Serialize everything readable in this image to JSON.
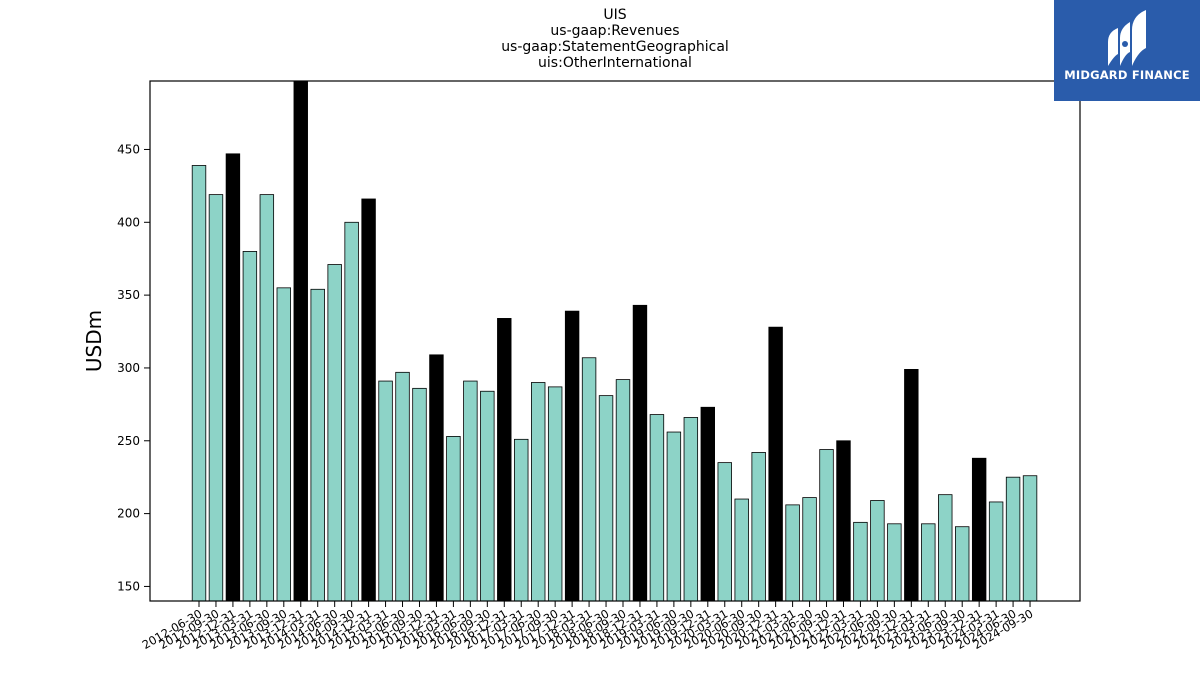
{
  "logo": {
    "text": "MIDGARD FINANCE",
    "icon": "midgard-logo-icon",
    "bg_color": "#2a5cab"
  },
  "chart_data": {
    "type": "bar",
    "title": [
      "UIS",
      "us-gaap:Revenues",
      "us-gaap:StatementGeographical",
      "uis:OtherInternational"
    ],
    "ylabel": "USDm",
    "xlabel": "",
    "ylim": [
      140,
      497
    ],
    "yticks": [
      150,
      200,
      250,
      300,
      350,
      400,
      450
    ],
    "colors": {
      "quarter": "#8dd3c7",
      "q4": "#000000"
    },
    "categories": [
      "2012-06-30",
      "2012-09-30",
      "2012-12-31",
      "2013-03-31",
      "2013-06-30",
      "2013-09-30",
      "2013-12-31",
      "2014-03-31",
      "2014-06-30",
      "2014-09-30",
      "2014-12-31",
      "2015-03-31",
      "2015-06-30",
      "2015-09-30",
      "2015-12-31",
      "2016-03-31",
      "2016-06-30",
      "2016-09-30",
      "2016-12-31",
      "2017-03-31",
      "2017-06-30",
      "2017-09-30",
      "2017-12-31",
      "2018-03-31",
      "2018-06-30",
      "2018-09-30",
      "2018-12-31",
      "2019-03-31",
      "2019-06-30",
      "2019-09-30",
      "2019-12-31",
      "2020-03-31",
      "2020-06-30",
      "2020-09-30",
      "2020-12-31",
      "2021-03-31",
      "2021-06-30",
      "2021-09-30",
      "2021-12-31",
      "2022-03-31",
      "2022-06-30",
      "2022-09-30",
      "2022-12-31",
      "2023-03-31",
      "2023-06-30",
      "2023-09-30",
      "2023-12-31",
      "2024-03-31",
      "2024-06-30",
      "2024-09-30"
    ],
    "values": [
      439,
      419,
      447,
      380,
      419,
      355,
      497,
      354,
      371,
      400,
      416,
      291,
      297,
      286,
      309,
      253,
      291,
      284,
      334,
      251,
      290,
      287,
      339,
      307,
      281,
      292,
      343,
      268,
      256,
      266,
      273,
      235,
      210,
      242,
      328,
      206,
      211,
      244,
      250,
      194,
      209,
      193,
      299,
      193,
      213,
      191,
      238,
      208,
      225,
      226
    ]
  }
}
